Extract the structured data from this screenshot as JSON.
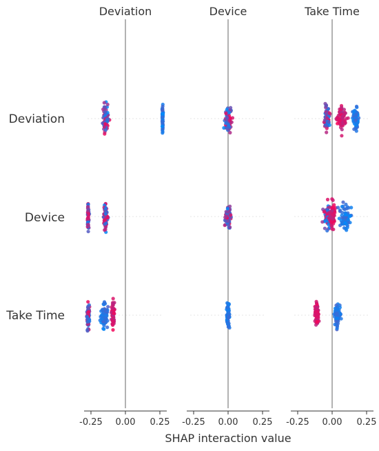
{
  "chart_data": {
    "type": "scatter",
    "subtype": "shap-interaction-beeswarm-grid",
    "xlabel": "SHAP interaction value",
    "column_titles": [
      "Deviation",
      "Device",
      "Take Time"
    ],
    "row_labels": [
      "Deviation",
      "Device",
      "Take Time"
    ],
    "xlim": [
      -0.3,
      0.3
    ],
    "xticks": [
      "-0.25",
      "0.00",
      "0.25"
    ],
    "xtick_values": [
      -0.25,
      0.0,
      0.25
    ],
    "colors": {
      "low": "#008afb",
      "high": "#ff0052",
      "zero_line": "#888888",
      "grid": "#e6e6e6"
    },
    "clusters": [
      {
        "row": 0,
        "col": 0,
        "groups": [
          {
            "center": -0.145,
            "spread": 0.02,
            "color": "mixed"
          },
          {
            "center": 0.27,
            "spread": 0.003,
            "color": "low"
          }
        ]
      },
      {
        "row": 0,
        "col": 1,
        "groups": [
          {
            "center": 0.0,
            "spread": 0.025,
            "color": "mixed"
          }
        ]
      },
      {
        "row": 0,
        "col": 2,
        "groups": [
          {
            "center": -0.04,
            "spread": 0.02,
            "color": "mixed"
          },
          {
            "center": 0.07,
            "spread": 0.03,
            "color": "high"
          },
          {
            "center": 0.17,
            "spread": 0.02,
            "color": "low"
          }
        ]
      },
      {
        "row": 1,
        "col": 0,
        "groups": [
          {
            "center": -0.27,
            "spread": 0.005,
            "color": "mixed"
          },
          {
            "center": -0.145,
            "spread": 0.015,
            "color": "mixed"
          }
        ]
      },
      {
        "row": 1,
        "col": 1,
        "groups": [
          {
            "center": 0.0,
            "spread": 0.025,
            "color": "mixed"
          }
        ]
      },
      {
        "row": 1,
        "col": 2,
        "groups": [
          {
            "center": -0.03,
            "spread": 0.03,
            "color": "mixed"
          },
          {
            "center": 0.0,
            "spread": 0.02,
            "color": "high"
          },
          {
            "center": 0.1,
            "spread": 0.04,
            "color": "low"
          }
        ]
      },
      {
        "row": 2,
        "col": 0,
        "groups": [
          {
            "center": -0.27,
            "spread": 0.01,
            "color": "mixed"
          },
          {
            "center": -0.15,
            "spread": 0.025,
            "color": "low"
          },
          {
            "center": -0.09,
            "spread": 0.01,
            "color": "high"
          }
        ]
      },
      {
        "row": 2,
        "col": 1,
        "groups": [
          {
            "center": 0.0,
            "spread": 0.01,
            "color": "low"
          }
        ]
      },
      {
        "row": 2,
        "col": 2,
        "groups": [
          {
            "center": -0.11,
            "spread": 0.015,
            "color": "high"
          },
          {
            "center": 0.04,
            "spread": 0.02,
            "color": "low"
          }
        ]
      }
    ]
  }
}
